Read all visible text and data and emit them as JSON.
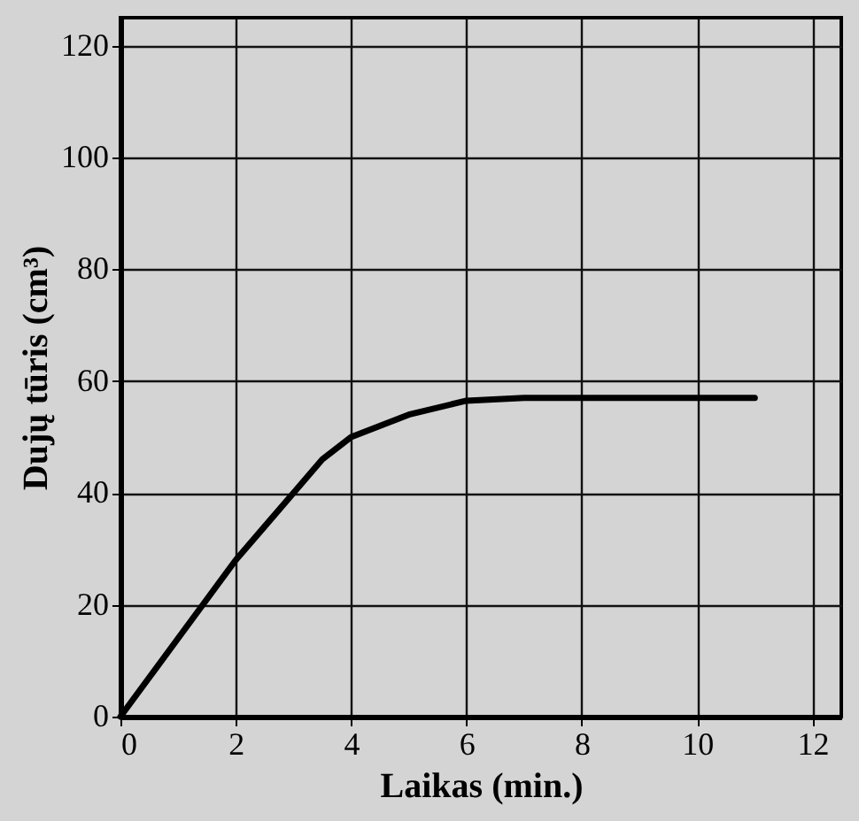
{
  "chart_data": {
    "type": "line",
    "xlabel": "Laikas (min.)",
    "ylabel": "Dujų tūris (cm³)",
    "x": [
      0,
      0.5,
      1,
      1.5,
      2,
      2.5,
      3,
      3.5,
      4,
      5,
      6,
      7,
      11
    ],
    "series": [
      {
        "color": "#000000",
        "values": [
          0,
          7,
          14,
          21,
          28,
          34,
          40,
          46,
          50,
          54,
          56.5,
          57,
          57
        ]
      }
    ],
    "xlim": [
      0,
      12.5
    ],
    "ylim": [
      0,
      125
    ],
    "xticks": [
      0,
      2,
      4,
      6,
      8,
      10,
      12
    ],
    "yticks": [
      0,
      20,
      40,
      60,
      80,
      100,
      120
    ],
    "grid": true,
    "marker": "none",
    "line_style": "solid"
  }
}
